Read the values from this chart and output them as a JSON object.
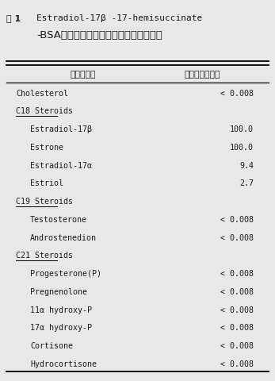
{
  "title_prefix": "表 1",
  "title_line1": "Estradiol-17β -17-hemisuccinate",
  "title_line2": "-BSAと性ステロイドホルモンと交叉反応",
  "col1_header": "ステロイド",
  "col2_header": "交叉反応（％）",
  "rows": [
    {
      "name": "Cholesterol",
      "value": "< 0.008",
      "indent": false,
      "underline": false
    },
    {
      "name": "C18 Steroids",
      "value": "",
      "indent": false,
      "underline": true
    },
    {
      "name": "Estradiol-17β",
      "value": "100.0",
      "indent": true,
      "underline": false
    },
    {
      "name": "Estrone",
      "value": "100.0",
      "indent": true,
      "underline": false
    },
    {
      "name": "Estradiol-17α",
      "value": "9.4",
      "indent": true,
      "underline": false
    },
    {
      "name": "Estriol",
      "value": "2.7",
      "indent": true,
      "underline": false
    },
    {
      "name": "C19 Steroids",
      "value": "",
      "indent": false,
      "underline": true
    },
    {
      "name": "Testosterone",
      "value": "< 0.008",
      "indent": true,
      "underline": false
    },
    {
      "name": "Androstenedion",
      "value": "< 0.008",
      "indent": true,
      "underline": false
    },
    {
      "name": "C21 Steroids",
      "value": "",
      "indent": false,
      "underline": true
    },
    {
      "name": "Progesterone(P)",
      "value": "< 0.008",
      "indent": true,
      "underline": false
    },
    {
      "name": "Pregnenolone",
      "value": "< 0.008",
      "indent": true,
      "underline": false
    },
    {
      "name": "11α hydroxy-P",
      "value": "< 0.008",
      "indent": true,
      "underline": false
    },
    {
      "name": "17α hydroxy-P",
      "value": "< 0.008",
      "indent": true,
      "underline": false
    },
    {
      "name": "Cortisone",
      "value": "< 0.008",
      "indent": true,
      "underline": false
    },
    {
      "name": "Hydrocortisone",
      "value": "< 0.008",
      "indent": true,
      "underline": false
    }
  ],
  "bg_color": "#e8e8e8",
  "text_color": "#1a1a1a",
  "mono_font": "monospace",
  "jp_font": "sans-serif",
  "body_fs": 7.2,
  "header_fs": 7.8,
  "title_fs": 8.0,
  "title_jp_fs": 9.5
}
